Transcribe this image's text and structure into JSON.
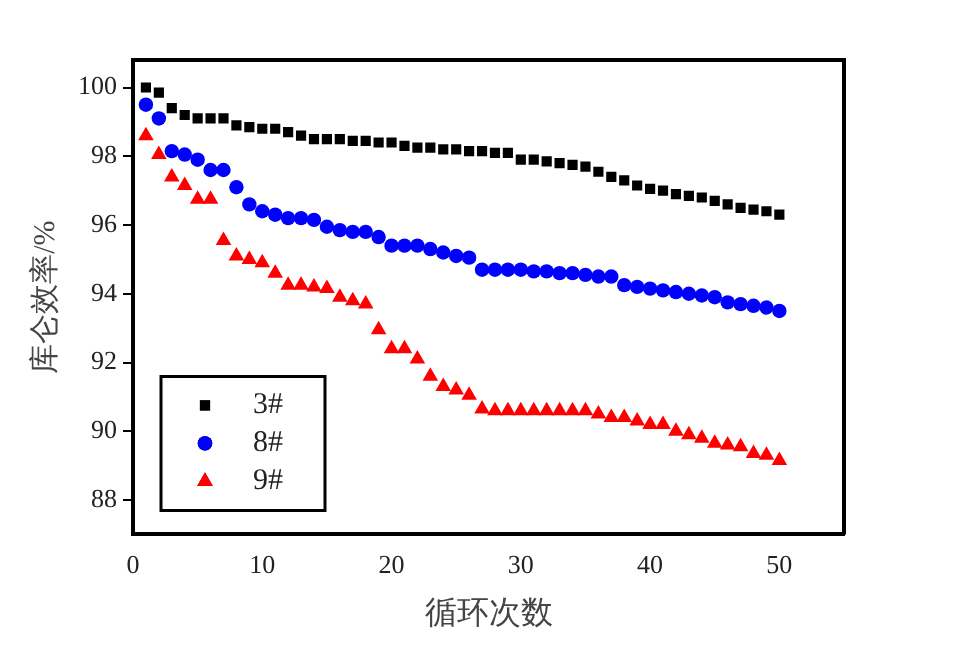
{
  "chart_data": {
    "type": "scatter",
    "xlabel": "循环次数",
    "ylabel": "库仑效率/%",
    "xlim": [
      0,
      55
    ],
    "xticks": [
      0,
      10,
      20,
      30,
      40,
      50
    ],
    "ylim": [
      87,
      100.8
    ],
    "yticks": [
      88,
      90,
      92,
      94,
      96,
      98,
      100
    ],
    "grid": false,
    "legend": "bottom left",
    "x": [
      1,
      2,
      3,
      4,
      5,
      6,
      7,
      8,
      9,
      10,
      11,
      12,
      13,
      14,
      15,
      16,
      17,
      18,
      19,
      20,
      21,
      22,
      23,
      24,
      25,
      26,
      27,
      28,
      29,
      30,
      31,
      32,
      33,
      34,
      35,
      36,
      37,
      38,
      39,
      40,
      41,
      42,
      43,
      44,
      45,
      46,
      47,
      48,
      49,
      50
    ],
    "series": [
      {
        "name": "3#",
        "color": "#000000",
        "marker": "square",
        "values": [
          100,
          99.85,
          99.4,
          99.2,
          99.1,
          99.1,
          99.1,
          98.9,
          98.85,
          98.8,
          98.8,
          98.7,
          98.6,
          98.5,
          98.5,
          98.5,
          98.45,
          98.45,
          98.4,
          98.4,
          98.3,
          98.25,
          98.25,
          98.2,
          98.2,
          98.15,
          98.15,
          98.1,
          98.1,
          97.9,
          97.9,
          97.85,
          97.8,
          97.75,
          97.7,
          97.55,
          97.4,
          97.3,
          97.15,
          97.05,
          97,
          96.9,
          96.85,
          96.8,
          96.7,
          96.6,
          96.5,
          96.45,
          96.4,
          96.3
        ]
      },
      {
        "name": "8#",
        "color": "#0000ff",
        "marker": "circle",
        "values": [
          99.5,
          99.1,
          98.15,
          98.05,
          97.9,
          97.6,
          97.6,
          97.1,
          96.6,
          96.4,
          96.3,
          96.2,
          96.2,
          96.15,
          95.95,
          95.85,
          95.8,
          95.8,
          95.65,
          95.4,
          95.4,
          95.4,
          95.3,
          95.2,
          95.1,
          95.05,
          94.7,
          94.7,
          94.7,
          94.7,
          94.65,
          94.65,
          94.6,
          94.6,
          94.55,
          94.5,
          94.5,
          94.25,
          94.2,
          94.15,
          94.1,
          94.05,
          94,
          93.95,
          93.9,
          93.75,
          93.7,
          93.65,
          93.6,
          93.5
        ]
      },
      {
        "name": "9#",
        "color": "#ff0000",
        "marker": "triangle",
        "values": [
          98.6,
          98.05,
          97.4,
          97.15,
          96.75,
          96.75,
          95.55,
          95.1,
          95,
          94.9,
          94.6,
          94.25,
          94.25,
          94.2,
          94.15,
          93.9,
          93.8,
          93.7,
          92.95,
          92.4,
          92.4,
          92.1,
          91.6,
          91.3,
          91.2,
          91.05,
          90.65,
          90.6,
          90.6,
          90.6,
          90.6,
          90.6,
          90.6,
          90.6,
          90.6,
          90.5,
          90.4,
          90.4,
          90.3,
          90.2,
          90.2,
          90,
          89.9,
          89.8,
          89.65,
          89.6,
          89.55,
          89.35,
          89.3,
          89.15
        ]
      }
    ]
  }
}
